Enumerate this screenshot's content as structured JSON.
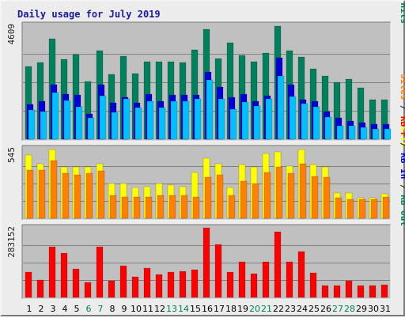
{
  "title": "Daily usage for July 2019",
  "colors": {
    "background": "#ececec",
    "plot": "#c0c0c0",
    "hits": "#00805c",
    "files": "#0000d8",
    "pages": "#00c0ff",
    "visits": "#ffff00",
    "sites": "#ff8000",
    "kb_f": "#ff0000",
    "kb_in": "#0000d8",
    "kb_out": "#00805c",
    "weekday_label": "#000000",
    "weekend_label": "#00805c"
  },
  "chart_data": [
    {
      "type": "bar",
      "panel": "hits-files-pages",
      "axis_max_label": "4609",
      "ylim": [
        0,
        4609
      ],
      "categories": [
        "1",
        "2",
        "3",
        "4",
        "5",
        "6",
        "7",
        "8",
        "9",
        "10",
        "11",
        "12",
        "13",
        "14",
        "15",
        "16",
        "17",
        "18",
        "19",
        "20",
        "21",
        "22",
        "23",
        "24",
        "25",
        "26",
        "27",
        "28",
        "29",
        "30",
        "31"
      ],
      "weekend_days": [
        "6",
        "7",
        "13",
        "14",
        "20",
        "21",
        "27",
        "28"
      ],
      "side_label": [
        {
          "text": "Pages",
          "color": "#00c0ff"
        },
        {
          "text": " / ",
          "color": "#202020"
        },
        {
          "text": "Files",
          "color": "#0000d8"
        },
        {
          "text": " / ",
          "color": "#202020"
        },
        {
          "text": "Hits",
          "color": "#00805c"
        }
      ],
      "series": [
        {
          "name": "Hits",
          "color": "#00805c",
          "values": [
            2950,
            3120,
            4080,
            3240,
            3440,
            2340,
            3600,
            2620,
            3370,
            2650,
            3140,
            3140,
            3140,
            3110,
            3620,
            4440,
            3260,
            3920,
            3380,
            3140,
            3480,
            4590,
            3600,
            3330,
            2850,
            2570,
            2310,
            2430,
            2090,
            1610,
            1610
          ]
        },
        {
          "name": "Files",
          "color": "#0000d8",
          "values": [
            1420,
            1540,
            2200,
            1820,
            1800,
            1020,
            2200,
            1470,
            1700,
            1460,
            1840,
            1550,
            1800,
            1800,
            1800,
            2730,
            2120,
            1700,
            1830,
            1550,
            1760,
            3300,
            2200,
            1600,
            1540,
            1130,
            870,
            740,
            670,
            600,
            600
          ]
        },
        {
          "name": "Pages",
          "color": "#00c0ff",
          "values": [
            1170,
            1120,
            1880,
            1560,
            1320,
            860,
            1760,
            1080,
            1620,
            1270,
            1540,
            1280,
            1550,
            1540,
            1620,
            2400,
            1620,
            1220,
            1510,
            1350,
            1620,
            2560,
            1720,
            1440,
            1310,
            900,
            530,
            530,
            490,
            410,
            410
          ]
        }
      ]
    },
    {
      "type": "bar",
      "panel": "visits-sites",
      "axis_max_label": "545",
      "ylim": [
        0,
        545
      ],
      "categories": [
        "1",
        "2",
        "3",
        "4",
        "5",
        "6",
        "7",
        "8",
        "9",
        "10",
        "11",
        "12",
        "13",
        "14",
        "15",
        "16",
        "17",
        "18",
        "19",
        "20",
        "21",
        "22",
        "23",
        "24",
        "25",
        "26",
        "27",
        "28",
        "29",
        "30",
        "31"
      ],
      "side_label": [
        {
          "text": "Sites",
          "color": "#ff8000"
        },
        {
          "text": " / ",
          "color": "#202020"
        },
        {
          "text": "Visits",
          "color": "#ffff00"
        }
      ],
      "series": [
        {
          "name": "Visits",
          "color": "#ffff00",
          "values": [
            495,
            430,
            540,
            400,
            400,
            400,
            430,
            270,
            270,
            240,
            250,
            270,
            260,
            250,
            360,
            470,
            430,
            240,
            420,
            400,
            510,
            520,
            410,
            540,
            420,
            400,
            200,
            200,
            160,
            160,
            190
          ]
        },
        {
          "name": "Sites",
          "color": "#ff8000",
          "values": [
            375,
            380,
            450,
            350,
            340,
            350,
            370,
            180,
            170,
            170,
            170,
            180,
            180,
            180,
            170,
            320,
            340,
            180,
            290,
            270,
            360,
            400,
            350,
            430,
            330,
            320,
            160,
            150,
            150,
            150,
            170
          ]
        }
      ]
    },
    {
      "type": "bar",
      "panel": "kbytes",
      "axis_max_label": "283152",
      "ylim": [
        0,
        283152
      ],
      "categories": [
        "1",
        "2",
        "3",
        "4",
        "5",
        "6",
        "7",
        "8",
        "9",
        "10",
        "11",
        "12",
        "13",
        "14",
        "15",
        "16",
        "17",
        "18",
        "19",
        "20",
        "21",
        "22",
        "23",
        "24",
        "25",
        "26",
        "27",
        "28",
        "29",
        "30",
        "31"
      ],
      "side_label": [
        {
          "text": "KB F",
          "color": "#ff0000"
        },
        {
          "text": " / ",
          "color": "#202020"
        },
        {
          "text": "KB In",
          "color": "#0000d8"
        },
        {
          "text": " / ",
          "color": "#202020"
        },
        {
          "text": "KB Out",
          "color": "#00805c"
        }
      ],
      "series": [
        {
          "name": "KB F",
          "color": "#ff0000",
          "values": [
            102000,
            72000,
            205000,
            181000,
            117000,
            62000,
            205000,
            68000,
            128000,
            83000,
            120000,
            92000,
            103000,
            106000,
            113000,
            283000,
            217000,
            104000,
            145000,
            98000,
            146000,
            268000,
            145000,
            188000,
            100000,
            49000,
            49000,
            68000,
            49000,
            49000,
            53000
          ]
        }
      ]
    }
  ]
}
